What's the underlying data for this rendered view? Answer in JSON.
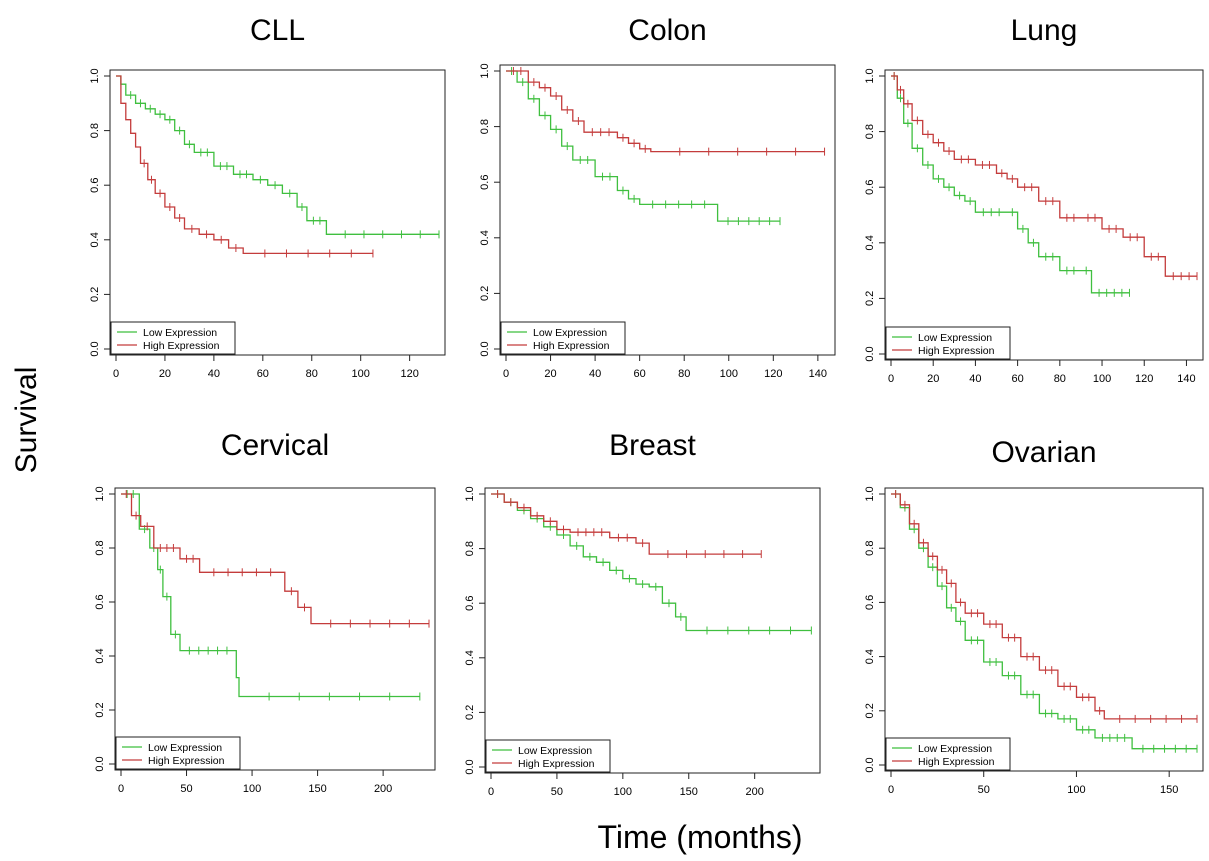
{
  "figure": {
    "ylabel": "Survival",
    "xlabel": "Time (months)"
  },
  "colors": {
    "low": "#3fbf3f",
    "high": "#c43c3c"
  },
  "chart_data": [
    {
      "type": "line",
      "title": "CLL",
      "xlim": [
        0,
        132
      ],
      "ylim": [
        0,
        1
      ],
      "xticks": [
        0,
        20,
        40,
        60,
        80,
        100,
        120
      ],
      "yticks": [
        0.0,
        0.2,
        0.4,
        0.6,
        0.8,
        1.0
      ],
      "legend": "bottom-left",
      "series": [
        {
          "name": "Low Expression",
          "color": "#3fbf3f",
          "x": [
            0,
            2,
            4,
            8,
            12,
            16,
            20,
            24,
            28,
            32,
            40,
            48,
            56,
            62,
            68,
            74,
            78,
            86,
            132
          ],
          "y": [
            1.0,
            0.97,
            0.93,
            0.9,
            0.88,
            0.86,
            0.84,
            0.8,
            0.75,
            0.72,
            0.67,
            0.64,
            0.62,
            0.6,
            0.57,
            0.52,
            0.47,
            0.42,
            0.42
          ]
        },
        {
          "name": "High Expression",
          "color": "#c43c3c",
          "x": [
            0,
            2,
            4,
            6,
            8,
            10,
            13,
            16,
            20,
            24,
            28,
            34,
            40,
            46,
            52,
            105
          ],
          "y": [
            1.0,
            0.9,
            0.84,
            0.79,
            0.74,
            0.68,
            0.62,
            0.57,
            0.52,
            0.48,
            0.44,
            0.42,
            0.4,
            0.37,
            0.35,
            0.35
          ]
        }
      ]
    },
    {
      "type": "line",
      "title": "Colon",
      "xlim": [
        0,
        145
      ],
      "ylim": [
        0,
        1
      ],
      "xticks": [
        0,
        20,
        40,
        60,
        80,
        100,
        120,
        140
      ],
      "yticks": [
        0.0,
        0.2,
        0.4,
        0.6,
        0.8,
        1.0
      ],
      "legend": "bottom-left",
      "series": [
        {
          "name": "Low Expression",
          "color": "#3fbf3f",
          "x": [
            0,
            5,
            10,
            15,
            20,
            25,
            30,
            40,
            50,
            55,
            60,
            95,
            123
          ],
          "y": [
            1.0,
            0.96,
            0.9,
            0.84,
            0.79,
            0.73,
            0.68,
            0.62,
            0.57,
            0.54,
            0.52,
            0.46,
            0.46
          ]
        },
        {
          "name": "High Expression",
          "color": "#c43c3c",
          "x": [
            0,
            10,
            15,
            20,
            25,
            30,
            35,
            50,
            55,
            60,
            65,
            143
          ],
          "y": [
            1.0,
            0.96,
            0.94,
            0.91,
            0.86,
            0.82,
            0.78,
            0.76,
            0.74,
            0.72,
            0.71,
            0.71
          ]
        }
      ]
    },
    {
      "type": "line",
      "title": "Lung",
      "xlim": [
        0,
        145
      ],
      "ylim": [
        0,
        1
      ],
      "xticks": [
        0,
        20,
        40,
        60,
        80,
        100,
        120,
        140
      ],
      "yticks": [
        0.0,
        0.2,
        0.4,
        0.6,
        0.8,
        1.0
      ],
      "legend": "bottom-left",
      "series": [
        {
          "name": "Low Expression",
          "color": "#3fbf3f",
          "x": [
            0,
            3,
            6,
            10,
            15,
            20,
            25,
            30,
            35,
            40,
            55,
            60,
            65,
            70,
            80,
            90,
            95,
            113
          ],
          "y": [
            1.0,
            0.92,
            0.83,
            0.74,
            0.68,
            0.63,
            0.6,
            0.57,
            0.55,
            0.51,
            0.51,
            0.45,
            0.4,
            0.35,
            0.3,
            0.3,
            0.22,
            0.22
          ]
        },
        {
          "name": "High Expression",
          "color": "#c43c3c",
          "x": [
            0,
            3,
            6,
            10,
            15,
            20,
            25,
            30,
            40,
            50,
            55,
            60,
            70,
            80,
            90,
            100,
            110,
            120,
            130,
            145
          ],
          "y": [
            1.0,
            0.95,
            0.9,
            0.84,
            0.79,
            0.76,
            0.73,
            0.7,
            0.68,
            0.65,
            0.63,
            0.6,
            0.55,
            0.49,
            0.49,
            0.45,
            0.42,
            0.35,
            0.28,
            0.28
          ]
        }
      ]
    },
    {
      "type": "line",
      "title": "Cervical",
      "xlim": [
        0,
        235
      ],
      "ylim": [
        0,
        1
      ],
      "xticks": [
        0,
        50,
        100,
        150,
        200
      ],
      "yticks": [
        0.0,
        0.2,
        0.4,
        0.6,
        0.8,
        1.0
      ],
      "legend": "bottom-left",
      "series": [
        {
          "name": "Low Expression",
          "color": "#3fbf3f",
          "x": [
            0,
            14,
            22,
            28,
            32,
            38,
            45,
            88,
            90,
            228
          ],
          "y": [
            1.0,
            0.87,
            0.8,
            0.72,
            0.62,
            0.48,
            0.42,
            0.32,
            0.25,
            0.25
          ]
        },
        {
          "name": "High Expression",
          "color": "#c43c3c",
          "x": [
            0,
            8,
            15,
            25,
            45,
            60,
            125,
            135,
            145,
            235
          ],
          "y": [
            1.0,
            0.92,
            0.88,
            0.8,
            0.76,
            0.71,
            0.64,
            0.58,
            0.52,
            0.52
          ]
        }
      ]
    },
    {
      "type": "line",
      "title": "Breast",
      "xlim": [
        0,
        245
      ],
      "ylim": [
        0,
        1
      ],
      "xticks": [
        0,
        50,
        100,
        150,
        200
      ],
      "yticks": [
        0.0,
        0.2,
        0.4,
        0.6,
        0.8,
        1.0
      ],
      "legend": "bottom-left",
      "series": [
        {
          "name": "Low Expression",
          "color": "#3fbf3f",
          "x": [
            0,
            10,
            20,
            30,
            40,
            50,
            60,
            70,
            80,
            90,
            100,
            110,
            120,
            130,
            140,
            148,
            243
          ],
          "y": [
            1.0,
            0.97,
            0.94,
            0.91,
            0.88,
            0.85,
            0.81,
            0.77,
            0.75,
            0.72,
            0.69,
            0.67,
            0.66,
            0.6,
            0.55,
            0.5,
            0.5
          ]
        },
        {
          "name": "High Expression",
          "color": "#c43c3c",
          "x": [
            0,
            10,
            20,
            30,
            40,
            50,
            60,
            90,
            110,
            120,
            205
          ],
          "y": [
            1.0,
            0.97,
            0.95,
            0.92,
            0.9,
            0.87,
            0.86,
            0.84,
            0.82,
            0.78,
            0.78
          ]
        }
      ]
    },
    {
      "type": "line",
      "title": "Ovarian",
      "xlim": [
        0,
        165
      ],
      "ylim": [
        0,
        1
      ],
      "xticks": [
        0,
        50,
        100,
        150
      ],
      "yticks": [
        0.0,
        0.2,
        0.4,
        0.6,
        0.8,
        1.0
      ],
      "legend": "bottom-left",
      "series": [
        {
          "name": "Low Expression",
          "color": "#3fbf3f",
          "x": [
            0,
            5,
            10,
            15,
            20,
            25,
            30,
            35,
            40,
            50,
            60,
            70,
            80,
            90,
            100,
            110,
            130,
            165
          ],
          "y": [
            1.0,
            0.95,
            0.87,
            0.8,
            0.73,
            0.66,
            0.58,
            0.53,
            0.46,
            0.38,
            0.33,
            0.26,
            0.19,
            0.17,
            0.13,
            0.1,
            0.06,
            0.06
          ]
        },
        {
          "name": "High Expression",
          "color": "#c43c3c",
          "x": [
            0,
            5,
            10,
            15,
            20,
            25,
            30,
            35,
            40,
            50,
            60,
            70,
            80,
            90,
            100,
            110,
            115,
            165
          ],
          "y": [
            1.0,
            0.96,
            0.89,
            0.82,
            0.77,
            0.72,
            0.67,
            0.6,
            0.56,
            0.52,
            0.47,
            0.4,
            0.35,
            0.29,
            0.25,
            0.2,
            0.17,
            0.17
          ]
        }
      ]
    }
  ]
}
